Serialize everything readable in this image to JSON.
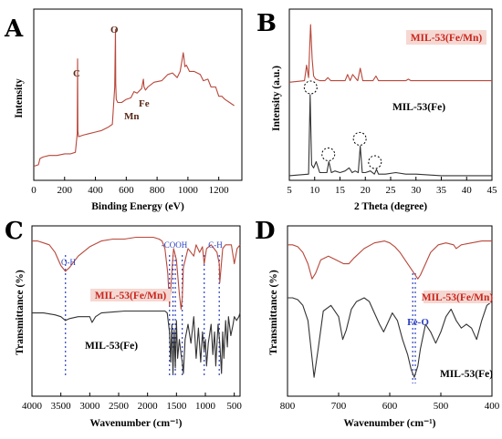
{
  "colors": {
    "red": "#b8473a",
    "black": "#333333",
    "blue": "#2a3fbf"
  },
  "chart_data": [
    {
      "panel": "A",
      "type": "line",
      "xlabel": "Binding Energy (eV)",
      "ylabel": "Intensity",
      "xlim": [
        0,
        1350
      ],
      "xticks": [
        0,
        200,
        400,
        600,
        800,
        1000,
        1200
      ],
      "series": [
        {
          "color": "#b8473a",
          "x": [
            0,
            30,
            40,
            60,
            100,
            150,
            200,
            240,
            270,
            282,
            284,
            286,
            290,
            320,
            360,
            400,
            440,
            480,
            510,
            525,
            530,
            532,
            535,
            545,
            570,
            600,
            630,
            650,
            670,
            690,
            700,
            711,
            715,
            725,
            740,
            780,
            830,
            870,
            900,
            930,
            950,
            970,
            975,
            980,
            990,
            1010,
            1040,
            1080,
            1100,
            1130,
            1150,
            1180,
            1200,
            1220,
            1240,
            1270,
            1300
          ],
          "y": [
            9,
            10,
            14,
            15,
            16,
            16,
            17,
            17,
            18,
            30,
            78,
            32,
            28,
            29,
            30,
            31,
            32,
            34,
            36,
            60,
            97,
            62,
            52,
            50,
            50,
            52,
            53,
            57,
            56,
            58,
            59,
            65,
            60,
            58,
            60,
            63,
            64,
            68,
            69,
            66,
            70,
            82,
            78,
            73,
            74,
            70,
            70,
            68,
            64,
            65,
            60,
            60,
            54,
            54,
            52,
            50,
            48
          ]
        }
      ],
      "annotations": [
        {
          "text": "C",
          "x": 285
        },
        {
          "text": "O",
          "x": 531
        },
        {
          "text": "Mn",
          "x": 642
        },
        {
          "text": "Fe",
          "x": 711
        }
      ]
    },
    {
      "panel": "B",
      "type": "line",
      "xlabel": "2 Theta (degree)",
      "ylabel": "Intensity (a.u.)",
      "xlim": [
        5,
        45
      ],
      "xticks": [
        5,
        10,
        15,
        20,
        25,
        30,
        35,
        40,
        45
      ],
      "series": [
        {
          "name": "MIL-53(Fe/Mn)",
          "color": "#b8473a",
          "x": [
            5,
            8,
            8.4,
            8.8,
            9.0,
            9.2,
            9.5,
            9.8,
            10.2,
            11,
            12,
            12.6,
            13.2,
            14,
            15,
            16,
            16.5,
            17,
            17.5,
            18.5,
            19.0,
            19.5,
            20.5,
            21.5,
            22.1,
            22.6,
            24,
            26,
            28,
            28.5,
            29,
            32,
            36,
            40,
            45
          ],
          "y": [
            63,
            64,
            74,
            66,
            84,
            100,
            78,
            67,
            65,
            64,
            64,
            66,
            64,
            64,
            64,
            64,
            68,
            64,
            68,
            64,
            72,
            64,
            64,
            64,
            67,
            64,
            64,
            64,
            64,
            65,
            64,
            64,
            64,
            64,
            64
          ]
        },
        {
          "name": "MIL-53(Fe)",
          "color": "#333333",
          "x": [
            5,
            8.8,
            9.1,
            9.4,
            9.8,
            10.3,
            11,
            12.4,
            12.8,
            13.3,
            14,
            15,
            16,
            16.8,
            17.4,
            18,
            18.6,
            19.0,
            19.4,
            20,
            21,
            21.8,
            22.2,
            22.6,
            24,
            26,
            28,
            30,
            35,
            40,
            45
          ],
          "y": [
            3,
            4,
            55,
            10,
            8,
            12,
            5,
            5,
            12,
            5,
            6,
            5,
            6,
            8,
            5,
            6,
            5,
            22,
            5,
            5,
            6,
            4,
            7,
            4,
            4,
            5,
            4,
            4,
            3,
            3,
            3
          ]
        }
      ],
      "annotations": [
        {
          "text": "MIL-53(Fe/Mn)",
          "x": 33.5,
          "y": 90
        },
        {
          "text": "MIL-53(Fe)",
          "x": 30,
          "y": 42
        }
      ],
      "highlight_circles": [
        9.2,
        12.7,
        18.9,
        21.9
      ]
    },
    {
      "panel": "C",
      "type": "line",
      "xlabel": "Wavenumber (cm⁻¹)",
      "ylabel": "Transmittance (%)",
      "xlim": [
        4000,
        400
      ],
      "xticks": [
        4000,
        3500,
        3000,
        2500,
        2000,
        1500,
        1000,
        500
      ],
      "series": [
        {
          "name": "MIL-53(Fe/Mn)",
          "color": "#b8473a",
          "x": [
            4000,
            3900,
            3800,
            3700,
            3600,
            3500,
            3420,
            3350,
            3200,
            3000,
            2800,
            2600,
            2400,
            2200,
            2000,
            1900,
            1800,
            1750,
            1700,
            1650,
            1620,
            1600,
            1570,
            1550,
            1500,
            1450,
            1420,
            1400,
            1380,
            1300,
            1200,
            1160,
            1100,
            1050,
            1020,
            980,
            900,
            850,
            800,
            760,
            750,
            700,
            650,
            600,
            550,
            500,
            450,
            400
          ],
          "y": [
            92,
            92,
            91,
            90,
            86,
            79,
            76,
            78,
            84,
            89,
            92,
            93,
            93,
            94,
            94,
            94,
            93,
            92,
            88,
            75,
            58,
            66,
            80,
            88,
            82,
            64,
            56,
            62,
            78,
            88,
            84,
            90,
            86,
            89,
            80,
            88,
            90,
            88,
            86,
            80,
            70,
            88,
            90,
            90,
            90,
            80,
            88,
            90
          ]
        },
        {
          "name": "MIL-53(Fe)",
          "color": "#333333",
          "x": [
            4000,
            3800,
            3600,
            3500,
            3420,
            3350,
            3200,
            3000,
            2960,
            2900,
            2800,
            2400,
            2000,
            1800,
            1700,
            1660,
            1620,
            1600,
            1580,
            1560,
            1540,
            1520,
            1500,
            1480,
            1450,
            1420,
            1400,
            1380,
            1350,
            1300,
            1250,
            1200,
            1160,
            1120,
            1080,
            1050,
            1020,
            1000,
            980,
            950,
            900,
            870,
            840,
            820,
            780,
            750,
            720,
            700,
            680,
            650,
            620,
            600,
            560,
            520,
            500,
            460,
            420,
            400
          ],
          "y": [
            54,
            54,
            53,
            52,
            50,
            51,
            52,
            52,
            49,
            52,
            54,
            55,
            55,
            55,
            55,
            54,
            44,
            28,
            48,
            22,
            45,
            25,
            50,
            30,
            40,
            32,
            28,
            22,
            40,
            48,
            38,
            52,
            30,
            46,
            28,
            44,
            34,
            40,
            26,
            38,
            48,
            32,
            44,
            26,
            48,
            38,
            22,
            44,
            30,
            50,
            36,
            52,
            42,
            48,
            52,
            50,
            52,
            54
          ]
        }
      ],
      "annotations": [
        {
          "text": "O-H",
          "x": 3420
        },
        {
          "text": "-COOH",
          "x": 1500
        },
        {
          "text": "C-H",
          "x": 760
        },
        {
          "text": "MIL-53(Fe/Mn)",
          "x": 2600,
          "y": 66
        },
        {
          "text": "MIL-53(Fe)",
          "x": 2400,
          "y": 44
        }
      ],
      "marker_lines_x": [
        3420,
        1620,
        1560,
        1520,
        1400,
        1020,
        760
      ]
    },
    {
      "panel": "D",
      "type": "line",
      "xlabel": "Wavenumber (cm⁻¹)",
      "ylabel": "Transmittance (%)",
      "xlim": [
        800,
        400
      ],
      "xticks": [
        800,
        700,
        600,
        500,
        400
      ],
      "series": [
        {
          "name": "MIL-53(Fe/Mn)",
          "color": "#b8473a",
          "x": [
            800,
            790,
            780,
            770,
            760,
            752,
            745,
            735,
            720,
            705,
            690,
            680,
            670,
            650,
            630,
            610,
            600,
            590,
            580,
            570,
            560,
            550,
            545,
            540,
            530,
            520,
            505,
            490,
            475,
            470,
            460,
            440,
            420,
            400
          ],
          "y": [
            90,
            90,
            89,
            86,
            80,
            72,
            75,
            82,
            84,
            82,
            80,
            80,
            83,
            88,
            91,
            92,
            91,
            89,
            86,
            82,
            78,
            74,
            72,
            74,
            80,
            86,
            90,
            91,
            90,
            88,
            90,
            91,
            92,
            92
          ]
        },
        {
          "name": "MIL-53(Fe)",
          "color": "#333333",
          "x": [
            800,
            790,
            780,
            770,
            760,
            752,
            748,
            740,
            730,
            715,
            700,
            692,
            685,
            675,
            665,
            650,
            640,
            630,
            620,
            612,
            605,
            595,
            585,
            575,
            565,
            558,
            552,
            545,
            540,
            530,
            520,
            510,
            500,
            490,
            480,
            470,
            460,
            450,
            440,
            430,
            420,
            410,
            400
          ],
          "y": [
            62,
            62,
            61,
            58,
            50,
            30,
            20,
            35,
            55,
            58,
            52,
            40,
            45,
            56,
            60,
            62,
            60,
            54,
            48,
            44,
            48,
            54,
            50,
            40,
            32,
            24,
            20,
            26,
            35,
            48,
            44,
            38,
            44,
            52,
            56,
            50,
            46,
            48,
            46,
            40,
            50,
            58,
            60
          ]
        }
      ],
      "annotations": [
        {
          "text": "MIL-53(Fe/Mn)",
          "x": 510,
          "y": 74
        },
        {
          "text": "Fe-O",
          "x": 560,
          "y": 42
        },
        {
          "text": "MIL-53(Fe)",
          "x": 510,
          "y": 18
        }
      ],
      "marker_lines_x": [
        550,
        555
      ]
    }
  ]
}
